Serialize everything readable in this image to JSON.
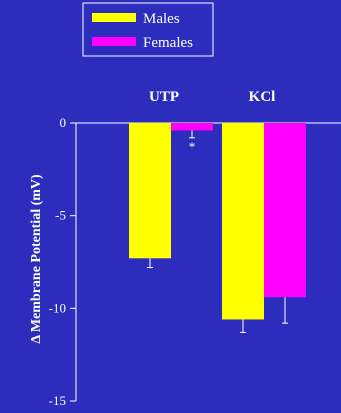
{
  "chart_data": {
    "type": "bar",
    "categories": [
      "UTP",
      "KCl"
    ],
    "series": [
      {
        "name": "Males",
        "values": [
          -7.3,
          -10.6
        ],
        "errors": [
          0.5,
          0.7
        ],
        "color": "#ffff00"
      },
      {
        "name": "Females",
        "values": [
          -0.4,
          -9.4
        ],
        "errors": [
          0.4,
          1.4
        ],
        "color": "#ff00ff"
      }
    ],
    "ylabel": "Δ Membrane Potential (mV)",
    "ylim": [
      -15,
      0
    ],
    "yticks": [
      0,
      -5,
      -10,
      -15
    ],
    "legend": "top-left",
    "annotations": [
      {
        "text": "*",
        "category": "UTP",
        "series": "Females"
      }
    ],
    "axis_color": "#ffffff",
    "background": "#2d2dbd"
  }
}
